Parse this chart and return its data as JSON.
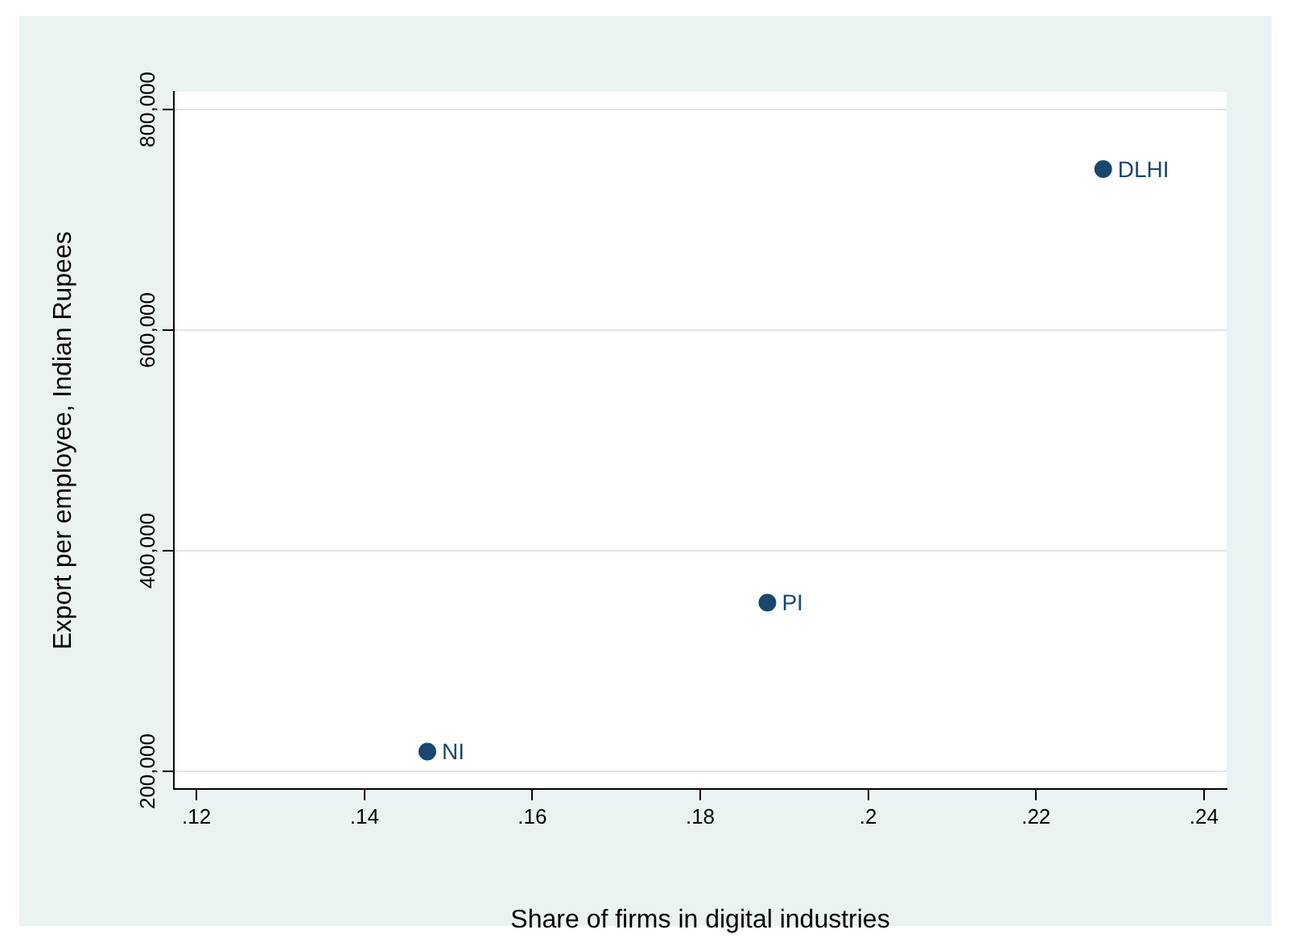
{
  "chart_data": {
    "type": "scatter",
    "xlabel": "Share of firms in digital industries",
    "ylabel": "Export per employee, Indian Rupees",
    "x": [
      0.1475,
      0.188,
      0.228
    ],
    "values": [
      218000,
      353000,
      746000
    ],
    "color": "#1a476f",
    "marker": "circle",
    "annotations": [
      {
        "text": "NI",
        "x": 0.1475,
        "y": 218000
      },
      {
        "text": "PI",
        "x": 0.188,
        "y": 353000
      },
      {
        "text": "DLHI",
        "x": 0.228,
        "y": 746000
      }
    ],
    "xlim": [
      0.1173,
      0.2427
    ],
    "xticks": [
      {
        "value": 0.12,
        "label": ".12"
      },
      {
        "value": 0.14,
        "label": ".14"
      },
      {
        "value": 0.16,
        "label": ".16"
      },
      {
        "value": 0.18,
        "label": ".18"
      },
      {
        "value": 0.2,
        "label": ".2"
      },
      {
        "value": 0.22,
        "label": ".22"
      },
      {
        "value": 0.24,
        "label": ".24"
      }
    ],
    "ylim": [
      184000,
      816000
    ],
    "yticks": [
      {
        "value": 200000,
        "label": "200,000"
      },
      {
        "value": 400000,
        "label": "400,000"
      },
      {
        "value": 600000,
        "label": "600,000"
      },
      {
        "value": 800000,
        "label": "800,000"
      }
    ],
    "grid": "y",
    "legend": false
  }
}
